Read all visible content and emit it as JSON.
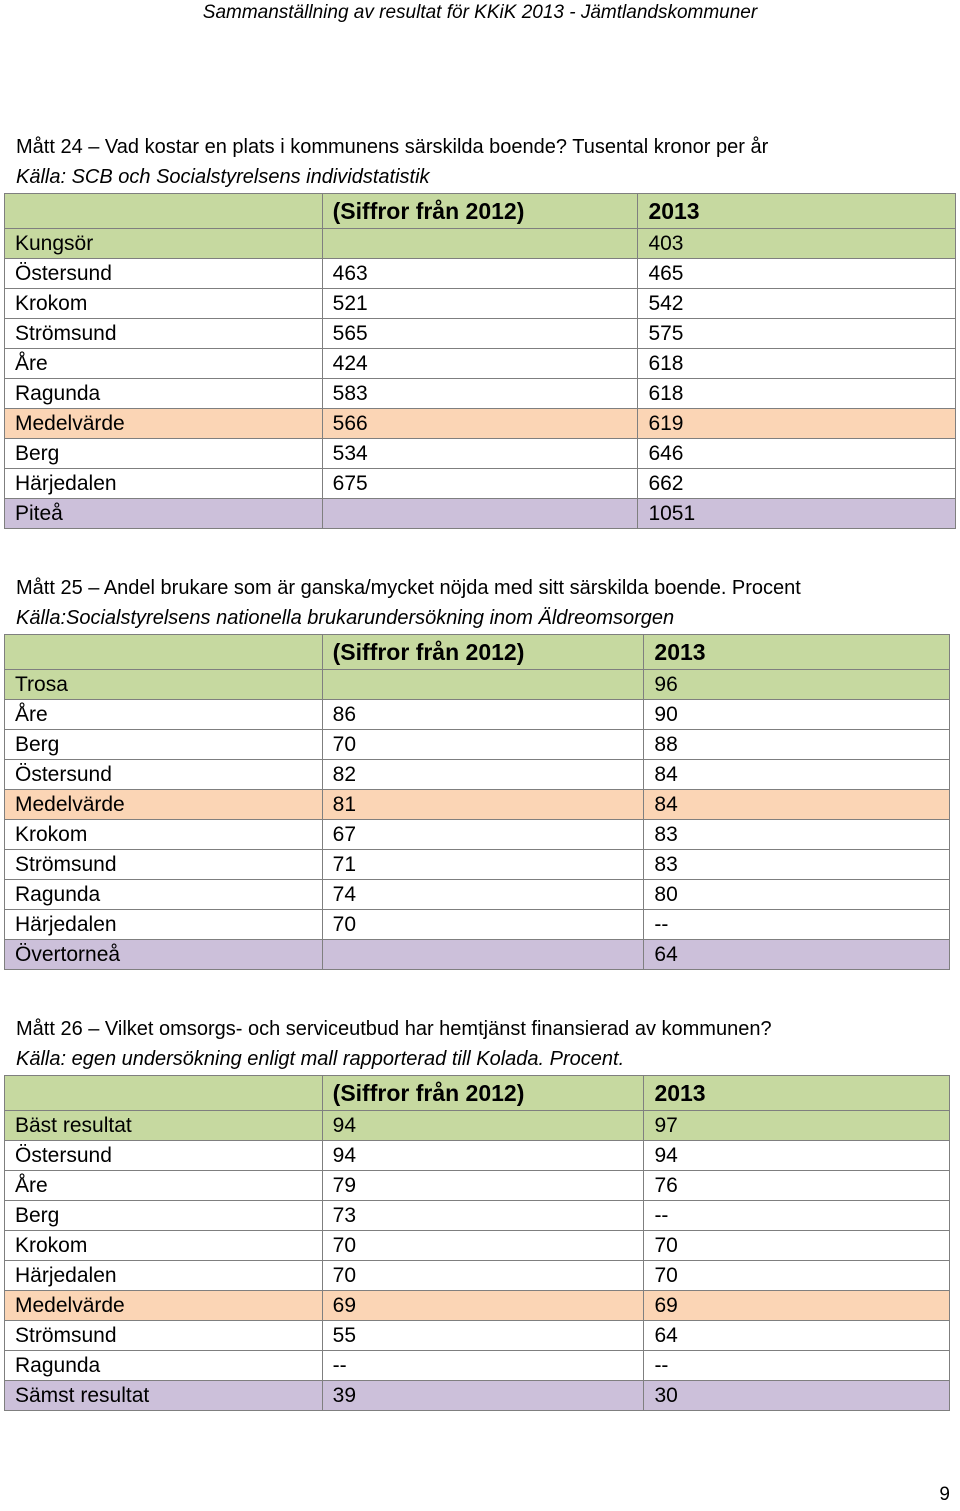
{
  "header": "Sammanställning av resultat för KKiK 2013 - Jämtlandskommuner",
  "page_number": "9",
  "colors": {
    "header_row": "#c6d9a0",
    "average_row": "#fbd5b5",
    "last_row": "#ccc0da",
    "border": "#7f7f7f"
  },
  "sections": [
    {
      "title": "Mått 24 – Vad kostar en plats i kommunens särskilda boende? Tusental kronor per år",
      "source": "Källa: SCB och Socialstyrelsens individstatistik",
      "columns": [
        "",
        "(Siffror från 2012)",
        "2013"
      ],
      "rows": [
        [
          "Kungsör",
          "",
          "403"
        ],
        [
          "Östersund",
          "463",
          "465"
        ],
        [
          "Krokom",
          "521",
          "542"
        ],
        [
          "Strömsund",
          "565",
          "575"
        ],
        [
          "Åre",
          "424",
          "618"
        ],
        [
          "Ragunda",
          "583",
          "618"
        ],
        [
          "Medelvärde",
          "566",
          "619"
        ],
        [
          "Berg",
          "534",
          "646"
        ],
        [
          "Härjedalen",
          "675",
          "662"
        ],
        [
          "Piteå",
          "",
          "1051"
        ]
      ]
    },
    {
      "title": "Mått 25 – Andel brukare som är ganska/mycket nöjda med sitt särskilda boende. Procent",
      "source": "Källa:Socialstyrelsens nationella brukarundersökning inom Äldreomsorgen",
      "columns": [
        "",
        "(Siffror från 2012)",
        "2013"
      ],
      "rows": [
        [
          "Trosa",
          "",
          "96"
        ],
        [
          "Åre",
          "86",
          "90"
        ],
        [
          "Berg",
          "70",
          "88"
        ],
        [
          "Östersund",
          "82",
          "84"
        ],
        [
          "Medelvärde",
          "81",
          "84"
        ],
        [
          "Krokom",
          "67",
          "83"
        ],
        [
          "Strömsund",
          "71",
          "83"
        ],
        [
          "Ragunda",
          "74",
          "80"
        ],
        [
          "Härjedalen",
          "70",
          "--"
        ],
        [
          "Övertorneå",
          "",
          "64"
        ]
      ]
    },
    {
      "title": "Mått 26 – Vilket omsorgs- och serviceutbud har hemtjänst finansierad av kommunen?",
      "source": "Källa: egen undersökning enligt mall rapporterad till Kolada. Procent.",
      "columns": [
        "",
        "(Siffror från 2012)",
        "2013"
      ],
      "rows": [
        [
          "Bäst resultat",
          "94",
          "97"
        ],
        [
          "Östersund",
          "94",
          "94"
        ],
        [
          "Åre",
          "79",
          "76"
        ],
        [
          "Berg",
          "73",
          "--"
        ],
        [
          "Krokom",
          "70",
          "70"
        ],
        [
          "Härjedalen",
          "70",
          "70"
        ],
        [
          "Medelvärde",
          "69",
          "69"
        ],
        [
          "Strömsund",
          "55",
          "64"
        ],
        [
          "Ragunda",
          "--",
          "--"
        ],
        [
          "Sämst resultat",
          "39",
          "30"
        ]
      ]
    }
  ]
}
